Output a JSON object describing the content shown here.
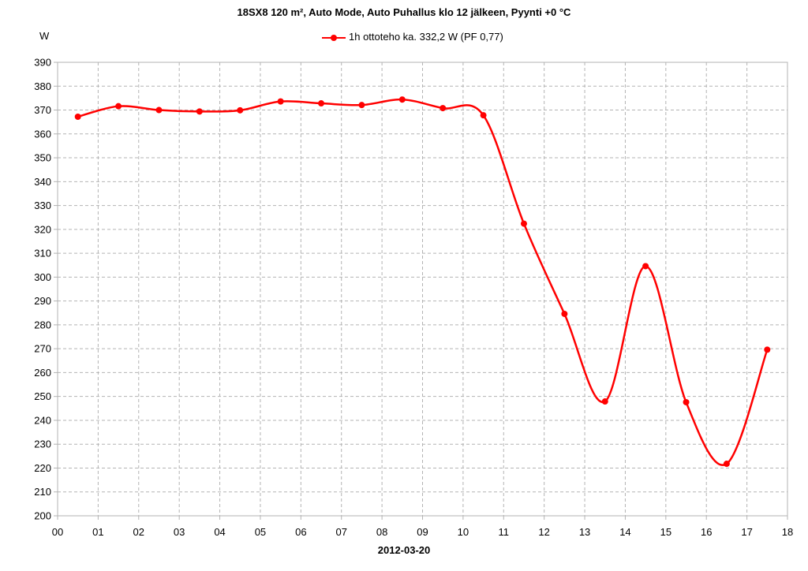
{
  "chart_data": {
    "type": "line",
    "title": "18SX8 120 m², Auto Mode, Auto Puhallus klo 12 jälkeen, Pyynti +0 °C",
    "ylabel": "W",
    "xlabel": "2012-03-20",
    "x_ticks": [
      "00",
      "01",
      "02",
      "03",
      "04",
      "05",
      "06",
      "07",
      "08",
      "09",
      "10",
      "11",
      "12",
      "13",
      "14",
      "15",
      "16",
      "17",
      "18"
    ],
    "xlim": [
      0,
      18
    ],
    "ylim": [
      200,
      390
    ],
    "y_ticks": [
      200,
      210,
      220,
      230,
      240,
      250,
      260,
      270,
      280,
      290,
      300,
      310,
      320,
      330,
      340,
      350,
      360,
      370,
      380,
      390
    ],
    "grid": true,
    "legend_position": "top",
    "series": [
      {
        "name": "1h ottoteho ka. 332,2 W (PF 0,77)",
        "color": "#ff0000",
        "x": [
          0.5,
          1.5,
          2.5,
          3.5,
          4.5,
          5.5,
          6.5,
          7.5,
          8.5,
          9.5,
          10.5,
          11.5,
          12.5,
          13.5,
          14.5,
          15.5,
          16.5,
          17.5
        ],
        "values": [
          367.2,
          371.6,
          370.0,
          369.4,
          369.9,
          373.6,
          372.8,
          372.1,
          374.4,
          370.8,
          367.8,
          322.4,
          284.6,
          247.9,
          304.6,
          247.6,
          221.8,
          269.6
        ]
      }
    ]
  }
}
